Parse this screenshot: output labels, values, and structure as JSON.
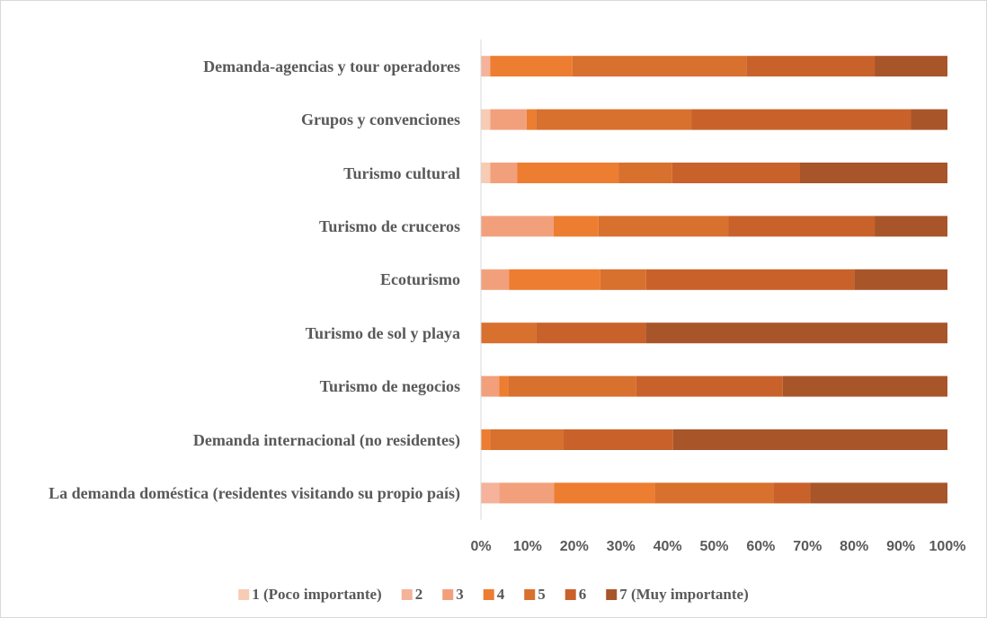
{
  "chart_data": {
    "type": "bar",
    "orientation": "horizontal",
    "stacked": true,
    "categories": [
      "Demanda-agencias y tour operadores",
      "Grupos y convenciones",
      "Turismo cultural",
      "Turismo de cruceros",
      "Ecoturismo",
      "Turismo de sol y playa",
      "Turismo de negocios",
      "Demanda internacional (no residentes)",
      "La demanda doméstica (residentes visitando su propio país)"
    ],
    "series": [
      {
        "name": "1 (Poco importante)",
        "color": "#f8cbb4",
        "values": [
          0,
          2,
          2,
          0,
          0,
          0,
          0,
          0,
          0
        ]
      },
      {
        "name": "2",
        "color": "#f4b39a",
        "values": [
          2,
          0,
          0,
          0,
          0,
          0,
          0,
          0,
          3.9
        ]
      },
      {
        "name": "3",
        "color": "#f2a07c",
        "values": [
          0,
          7.8,
          5.8,
          15.6,
          6,
          0,
          3.9,
          0,
          11.8
        ]
      },
      {
        "name": "4",
        "color": "#ed7d31",
        "values": [
          17.6,
          2,
          21.7,
          9.6,
          19.6,
          0,
          2,
          2,
          21.6
        ]
      },
      {
        "name": "5",
        "color": "#d8702e",
        "values": [
          37.3,
          33.3,
          11.5,
          27.8,
          9.8,
          11.8,
          27.4,
          15.6,
          25.4
        ]
      },
      {
        "name": "6",
        "color": "#c9622a",
        "values": [
          27.5,
          47.1,
          27.4,
          31.4,
          44.6,
          23.5,
          31.4,
          23.6,
          7.9
        ]
      },
      {
        "name": "7 (Muy importante)",
        "color": "#a9552a",
        "values": [
          15.6,
          7.8,
          31.6,
          15.6,
          20,
          64.7,
          35.3,
          58.8,
          29.4
        ]
      }
    ],
    "xlim": [
      0,
      100
    ],
    "xticks": [
      {
        "value": 0,
        "label": "0%"
      },
      {
        "value": 10,
        "label": "10%"
      },
      {
        "value": 20,
        "label": "20%"
      },
      {
        "value": 30,
        "label": "30%"
      },
      {
        "value": 40,
        "label": "40%"
      },
      {
        "value": 50,
        "label": "50%"
      },
      {
        "value": 60,
        "label": "60%"
      },
      {
        "value": 70,
        "label": "70%"
      },
      {
        "value": 80,
        "label": "80%"
      },
      {
        "value": 90,
        "label": "90%"
      },
      {
        "value": 100,
        "label": "100%"
      }
    ],
    "grid": false,
    "legend": "bottom"
  }
}
